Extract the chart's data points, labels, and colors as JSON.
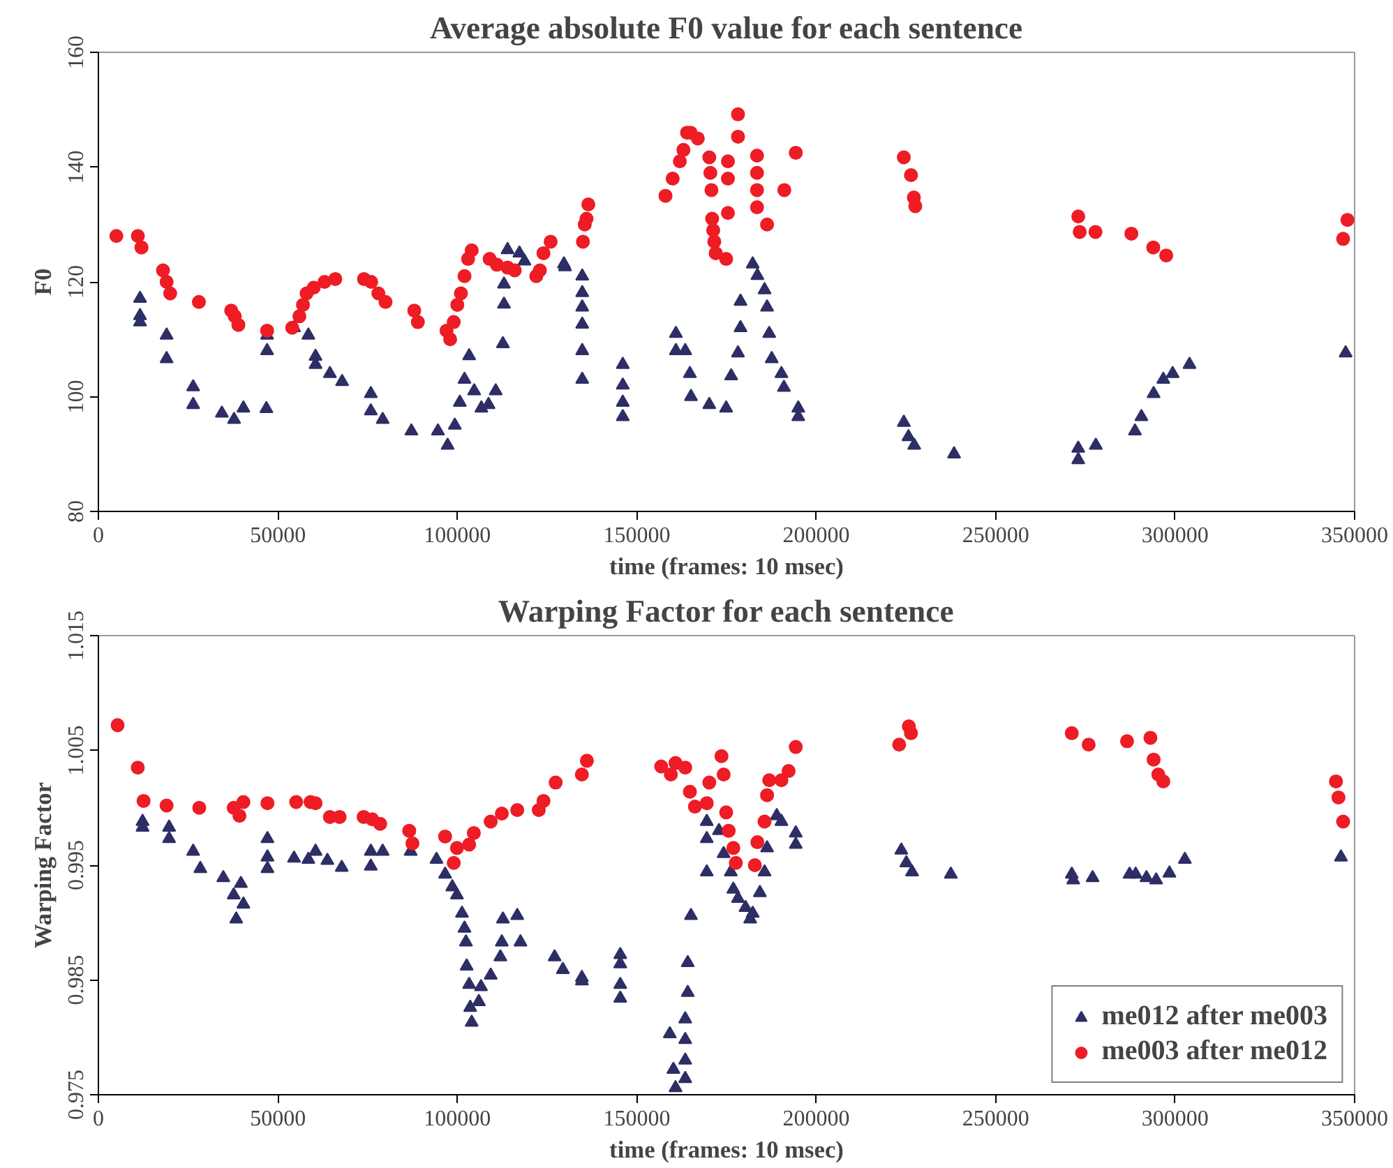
{
  "chart_data": [
    {
      "type": "scatter",
      "title": "Average absolute F0 value for each sentence",
      "xlabel": "time (frames: 10 msec)",
      "ylabel": "F0",
      "xlim": [
        0,
        350000
      ],
      "xticks": [
        0,
        50000,
        100000,
        150000,
        200000,
        250000,
        300000,
        350000
      ],
      "ylim": [
        80,
        160
      ],
      "yticks": [
        80,
        100,
        120,
        140,
        160
      ],
      "grid": false,
      "legend": false,
      "series": [
        {
          "color": "#2e2e66",
          "marker": "triangle",
          "x": [
            11600,
            11600,
            11600,
            19000,
            19000,
            26400,
            26400,
            34400,
            37800,
            40400,
            46800,
            47000,
            47000,
            54500,
            58500,
            60500,
            60500,
            64500,
            67900,
            75900,
            75900,
            79200,
            87200,
            94600,
            97300,
            99300,
            100700,
            102000,
            103300,
            104700,
            106700,
            108700,
            110700,
            112700,
            113000,
            113000,
            114000,
            117300,
            118700,
            129700,
            130000,
            134800,
            134800,
            134800,
            134800,
            134800,
            134800,
            146100,
            146100,
            146100,
            146100,
            160900,
            160900,
            163500,
            164800,
            165100,
            170200,
            174900,
            176300,
            178200,
            178900,
            178900,
            182300,
            183600,
            185600,
            186300,
            186900,
            187600,
            190300,
            191000,
            195000,
            195000,
            224400,
            225700,
            227300,
            238400,
            273000,
            273000,
            277900,
            288800,
            290600,
            294000,
            296700,
            299300,
            304000,
            347500
          ],
          "values": [
            117.1,
            114.1,
            113,
            110.7,
            106.6,
            101.7,
            98.6,
            97.1,
            96,
            98,
            97.9,
            108,
            110.7,
            112,
            110.7,
            107,
            105.6,
            104,
            102.6,
            100.5,
            97.5,
            96,
            94,
            94,
            91.5,
            95,
            99,
            103,
            107.1,
            101,
            98,
            98.6,
            101,
            109.2,
            116.1,
            119.6,
            125.6,
            125,
            123.6,
            123.1,
            122.6,
            121,
            118.1,
            115.6,
            112.6,
            108,
            103,
            105.6,
            102,
            99,
            96.5,
            111,
            108,
            108,
            104,
            100,
            98.6,
            98,
            103.6,
            107.6,
            112,
            116.6,
            123.1,
            121.1,
            118.6,
            115.6,
            111,
            106.6,
            104,
            101.6,
            98,
            96.5,
            95.5,
            93,
            91.5,
            90,
            91,
            89,
            91.5,
            94,
            96.5,
            100.5,
            103,
            104,
            105.6,
            107.6
          ]
        },
        {
          "color": "#ee1c25",
          "marker": "circle",
          "x": [
            5000,
            11000,
            12000,
            18000,
            19000,
            20000,
            28000,
            37000,
            38000,
            39000,
            47000,
            54000,
            56000,
            57000,
            58000,
            60000,
            63000,
            66000,
            74000,
            76000,
            78000,
            80000,
            88000,
            89000,
            97000,
            98000,
            99000,
            100000,
            101000,
            102000,
            103000,
            104000,
            109000,
            111000,
            114000,
            116000,
            122000,
            123000,
            124000,
            126000,
            135000,
            135500,
            136000,
            136500,
            158000,
            160000,
            162000,
            163000,
            164000,
            165000,
            167000,
            170200,
            170500,
            170800,
            171000,
            171300,
            171600,
            172000,
            174900,
            175400,
            175400,
            175400,
            178200,
            178200,
            183500,
            183500,
            183500,
            183500,
            186300,
            191100,
            194300,
            224400,
            226400,
            227200,
            227600,
            273000,
            273400,
            277800,
            287800,
            293900,
            297500,
            346800,
            348000
          ],
          "values": [
            128,
            128,
            126,
            122,
            120,
            118,
            116.5,
            115,
            114,
            112.5,
            111.5,
            112,
            114,
            116,
            118,
            119,
            120,
            120.5,
            120.5,
            120,
            118,
            116.5,
            115,
            113,
            111.5,
            110,
            113,
            116,
            118,
            121,
            124,
            125.5,
            124,
            123,
            122.5,
            122,
            121,
            122,
            125,
            127,
            127,
            130,
            131,
            133.5,
            135,
            138,
            141,
            143,
            146,
            146,
            145,
            141.7,
            139,
            136,
            131,
            129,
            127,
            125,
            124,
            132,
            138,
            141,
            149.2,
            145.3,
            142,
            139,
            136,
            133,
            130,
            136,
            142.5,
            141.7,
            138.6,
            134.7,
            133.2,
            131.4,
            128.7,
            128.7,
            128.4,
            126,
            124.6,
            127.5,
            130.8
          ]
        }
      ]
    },
    {
      "type": "scatter",
      "title": "Warping Factor for each sentence",
      "xlabel": "time (frames: 10 msec)",
      "ylabel": "Warping Factor",
      "xlim": [
        0,
        350000
      ],
      "xticks": [
        0,
        50000,
        100000,
        150000,
        200000,
        250000,
        300000,
        350000
      ],
      "ylim": [
        0.975,
        1.015
      ],
      "yticks": [
        0.975,
        0.985,
        0.995,
        1.005,
        1.015
      ],
      "grid": false,
      "legend": "bottom right",
      "series": [
        {
          "name": "me012 after me003",
          "color": "#2e2e66",
          "marker": "triangle",
          "x": [
            12300,
            12300,
            19700,
            19700,
            26400,
            28400,
            34800,
            37700,
            38400,
            39700,
            40400,
            47100,
            47100,
            47100,
            54500,
            58500,
            60500,
            63800,
            67800,
            75900,
            75900,
            79200,
            87000,
            94200,
            96600,
            98600,
            99900,
            101300,
            102000,
            102400,
            102600,
            103300,
            103600,
            104000,
            106000,
            106600,
            109300,
            112000,
            112400,
            112700,
            116700,
            117600,
            127100,
            129400,
            134700,
            134700,
            145400,
            145400,
            145400,
            145400,
            159200,
            160200,
            160800,
            163500,
            163500,
            163500,
            163500,
            164200,
            164200,
            165100,
            169500,
            169500,
            169500,
            172900,
            174200,
            176200,
            176900,
            178200,
            180300,
            181600,
            182300,
            184300,
            185600,
            186300,
            189000,
            190300,
            194300,
            194300,
            223700,
            225100,
            226700,
            237500,
            271200,
            271600,
            277000,
            287300,
            289000,
            292000,
            294700,
            298400,
            302700,
            346200
          ],
          "values": [
            0.9988,
            0.9983,
            0.9983,
            0.9973,
            0.9962,
            0.9947,
            0.9939,
            0.9924,
            0.9903,
            0.9934,
            0.9916,
            0.9973,
            0.9957,
            0.9947,
            0.9956,
            0.9955,
            0.9962,
            0.9954,
            0.9948,
            0.9962,
            0.9949,
            0.9962,
            0.9962,
            0.9955,
            0.9942,
            0.9931,
            0.9924,
            0.9908,
            0.9895,
            0.9883,
            0.9862,
            0.9846,
            0.9826,
            0.9813,
            0.9831,
            0.9844,
            0.9854,
            0.987,
            0.9883,
            0.9903,
            0.9906,
            0.9883,
            0.987,
            0.9859,
            0.9852,
            0.9849,
            0.9872,
            0.9864,
            0.9846,
            0.9834,
            0.9803,
            0.9772,
            0.9756,
            0.9764,
            0.978,
            0.9798,
            0.9816,
            0.9839,
            0.9865,
            0.9906,
            0.9944,
            0.9973,
            0.9988,
            0.998,
            0.996,
            0.9944,
            0.9929,
            0.9921,
            0.9913,
            0.9903,
            0.9908,
            0.9926,
            0.9944,
            0.9965,
            0.9993,
            0.9988,
            0.9978,
            0.9968,
            0.9963,
            0.9952,
            0.9944,
            0.9942,
            0.9942,
            0.9937,
            0.9939,
            0.9942,
            0.9942,
            0.9939,
            0.9937,
            0.9943,
            0.9955,
            0.9957
          ]
        },
        {
          "name": "me003 after me012",
          "color": "#ee1c25",
          "marker": "circle",
          "x": [
            5350,
            10970,
            12580,
            19000,
            28100,
            37700,
            39300,
            40400,
            47100,
            55100,
            59100,
            60500,
            64500,
            67200,
            73900,
            76300,
            78500,
            86600,
            87500,
            96600,
            99000,
            99900,
            103300,
            104600,
            109300,
            112400,
            116700,
            122700,
            124000,
            127400,
            134700,
            136100,
            156800,
            159500,
            160800,
            163500,
            164800,
            166200,
            169500,
            170200,
            173600,
            174200,
            174900,
            175600,
            176900,
            177600,
            182900,
            183600,
            185600,
            186300,
            186900,
            190300,
            192300,
            194300,
            223100,
            225800,
            226400,
            271200,
            275900,
            286600,
            293100,
            294000,
            295300,
            296700,
            344800,
            345500,
            346800
          ],
          "values": [
            1.0072,
            1.0035,
            1.0006,
            1.0002,
            1.0,
            1.0,
            0.9993,
            1.0005,
            1.0004,
            1.0005,
            1.0005,
            1.0004,
            0.9992,
            0.9992,
            0.9992,
            0.999,
            0.9986,
            0.998,
            0.9969,
            0.9975,
            0.9952,
            0.9965,
            0.9968,
            0.9978,
            0.9988,
            0.9995,
            0.9998,
            0.9998,
            1.0006,
            1.0022,
            1.0029,
            1.0041,
            1.0036,
            1.0029,
            1.0039,
            1.0035,
            1.0014,
            1.0001,
            1.0004,
            1.0022,
            1.0045,
            1.0029,
            0.9996,
            0.998,
            0.9965,
            0.9952,
            0.995,
            0.997,
            0.9988,
            1.0011,
            1.0024,
            1.0024,
            1.0032,
            1.0053,
            1.0055,
            1.0071,
            1.0065,
            1.0065,
            1.0055,
            1.0058,
            1.0061,
            1.0042,
            1.0029,
            1.0023,
            1.0023,
            1.0009,
            0.9988
          ]
        }
      ]
    }
  ]
}
